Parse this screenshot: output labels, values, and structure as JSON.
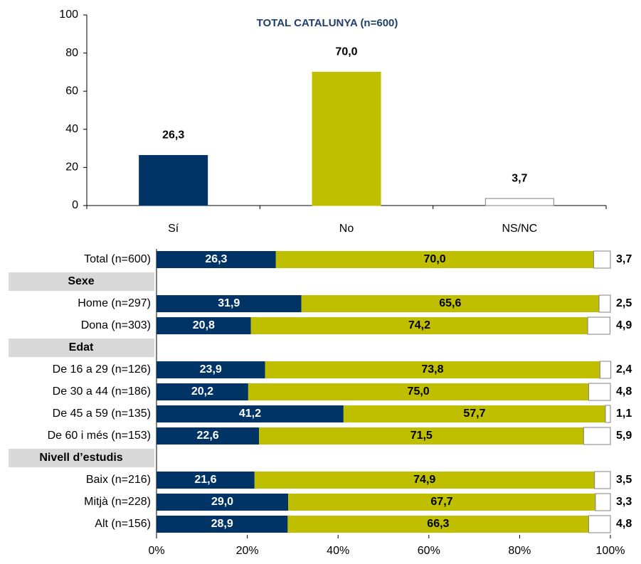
{
  "chart_data": [
    {
      "type": "bar",
      "title": "TOTAL CATALUNYA (n=600)",
      "categories": [
        "Sí",
        "No",
        "NS/NC"
      ],
      "values": [
        26.3,
        70.0,
        3.7
      ],
      "value_labels": [
        "26,3",
        "70,0",
        "3,7"
      ],
      "colors": [
        "#003366",
        "#bfbf00",
        "#ffffff"
      ],
      "ylim": [
        0,
        100
      ],
      "yticks": [
        0,
        20,
        40,
        60,
        80,
        100
      ]
    },
    {
      "type": "stacked_barh",
      "categories": [
        "Total (n=600)",
        "Sexe",
        "Home (n=297)",
        "Dona  (n=303)",
        "Edat",
        "De 16 a 29 (n=126)",
        "De 30 a 44 (n=186)",
        "De 45 a 59 (n=135)",
        "De 60 i més (n=153)",
        "Nivell d’estudis",
        "Baix (n=216)",
        "Mitjà (n=228)",
        "Alt (n=156)"
      ],
      "series": [
        {
          "color": "#003366",
          "values": [
            26.3,
            null,
            31.9,
            20.8,
            null,
            23.9,
            20.2,
            41.2,
            22.6,
            null,
            21.6,
            29.0,
            28.9
          ],
          "value_labels": [
            "26,3",
            null,
            "31,9",
            "20,8",
            null,
            "23,9",
            "20,2",
            "41,2",
            "22,6",
            null,
            "21,6",
            "29,0",
            "28,9"
          ]
        },
        {
          "color": "#bfbf00",
          "values": [
            70.0,
            null,
            65.6,
            74.2,
            null,
            73.8,
            75.0,
            57.7,
            71.5,
            null,
            74.9,
            67.7,
            66.3
          ],
          "value_labels": [
            "70,0",
            null,
            "65,6",
            "74,2",
            null,
            "73,8",
            "75,0",
            "57,7",
            "71,5",
            null,
            "74,9",
            "67,7",
            "66,3"
          ]
        },
        {
          "color": "#ffffff",
          "values": [
            3.7,
            null,
            2.5,
            4.9,
            null,
            2.4,
            4.8,
            1.1,
            5.9,
            null,
            3.5,
            3.3,
            4.8
          ],
          "value_labels": [
            "3,7",
            null,
            "2,5",
            "4,9",
            null,
            "2,4",
            "4,8",
            "1,1",
            "5,9",
            null,
            "3,5",
            "3,3",
            "4,8"
          ]
        }
      ],
      "xlim": [
        0,
        100
      ],
      "xticks": [
        {
          "value": 0,
          "label": "0%"
        },
        {
          "value": 20,
          "label": "20%"
        },
        {
          "value": 40,
          "label": "40%"
        },
        {
          "value": 60,
          "label": "60%"
        },
        {
          "value": 80,
          "label": "80%"
        },
        {
          "value": 100,
          "label": "100%"
        }
      ]
    }
  ]
}
